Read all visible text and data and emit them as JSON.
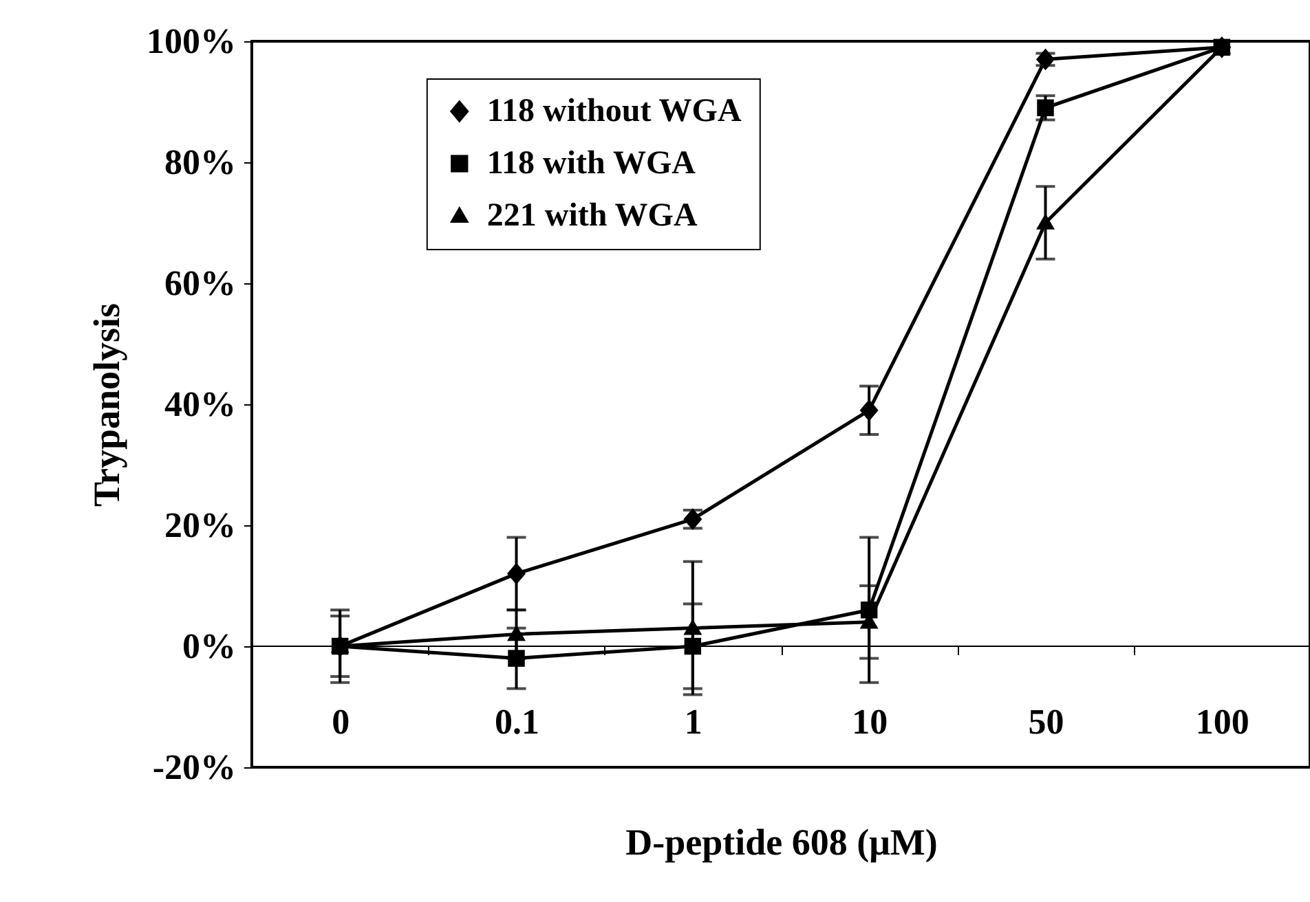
{
  "chart_data": {
    "type": "line",
    "xlabel": "D-peptide 608 (μM)",
    "ylabel": "Trypanolysis",
    "categories": [
      "0",
      "0.1",
      "1",
      "10",
      "50",
      "100"
    ],
    "ylim": [
      -20,
      100
    ],
    "yticks": [
      {
        "value": -20,
        "label": "-20%"
      },
      {
        "value": 0,
        "label": "0%"
      },
      {
        "value": 20,
        "label": "20%"
      },
      {
        "value": 40,
        "label": "40%"
      },
      {
        "value": 60,
        "label": "60%"
      },
      {
        "value": 80,
        "label": "80%"
      },
      {
        "value": 100,
        "label": "100%"
      }
    ],
    "grid": false,
    "legend": "top left",
    "line_style": "solid",
    "ref_lines": [
      {
        "axis": "y",
        "value": 0
      }
    ],
    "series": [
      {
        "name": "118 without WGA",
        "color": "#000000",
        "marker": "diamond",
        "values": [
          0,
          12,
          21,
          39,
          97,
          99
        ],
        "errors": [
          6,
          6,
          1.5,
          4,
          1,
          null
        ]
      },
      {
        "name": "118 with WGA",
        "color": "#000000",
        "marker": "square",
        "values": [
          0,
          -2,
          0,
          6,
          89,
          99
        ],
        "errors": [
          5,
          5,
          7,
          12,
          2,
          null
        ]
      },
      {
        "name": "221 with WGA",
        "color": "#000000",
        "marker": "triangle",
        "values": [
          0,
          2,
          3,
          4,
          70,
          99
        ],
        "errors": [
          null,
          4,
          11,
          6,
          6,
          null
        ]
      }
    ]
  }
}
